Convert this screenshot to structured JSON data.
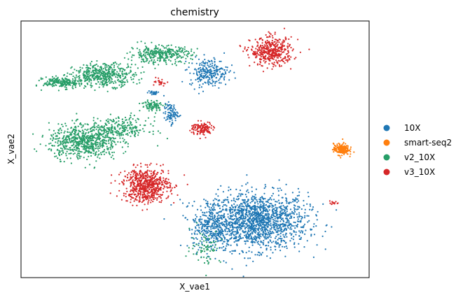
{
  "chart_data": {
    "type": "scatter",
    "title": "chemistry",
    "xlabel": "X_vae1",
    "ylabel": "X_vae2",
    "xlim": [
      0,
      100
    ],
    "ylim": [
      0,
      100
    ],
    "grid": false,
    "ticks": false,
    "legend_placement": "right-outside",
    "series": [
      {
        "name": "10X",
        "color": "#1f77b4",
        "clusters": [
          {
            "center": [
              68,
              22
            ],
            "spread": [
              13,
              10
            ],
            "count": 1500
          },
          {
            "center": [
              55,
              20
            ],
            "spread": [
              5,
              9
            ],
            "count": 320
          },
          {
            "center": [
              54,
              80
            ],
            "spread": [
              5,
              5
            ],
            "count": 240
          },
          {
            "center": [
              43,
              64
            ],
            "spread": [
              1.8,
              3.5
            ],
            "count": 90
          },
          {
            "center": [
              38,
              72
            ],
            "spread": [
              1.5,
              1
            ],
            "count": 25
          }
        ]
      },
      {
        "name": "smart-seq2",
        "color": "#ff7f0e",
        "clusters": [
          {
            "center": [
              92,
              50
            ],
            "spread": [
              2,
              2
            ],
            "count": 200
          }
        ]
      },
      {
        "name": "v2_10X",
        "color": "#279e68",
        "clusters": [
          {
            "center": [
              18,
              53
            ],
            "spread": [
              9,
              6
            ],
            "count": 650
          },
          {
            "center": [
              28,
              58
            ],
            "spread": [
              8,
              4
            ],
            "count": 250
          },
          {
            "center": [
              12,
              76
            ],
            "spread": [
              5,
              2
            ],
            "count": 220
          },
          {
            "center": [
              24,
              79
            ],
            "spread": [
              8,
              4
            ],
            "count": 450
          },
          {
            "center": [
              40,
              87
            ],
            "spread": [
              8,
              3
            ],
            "count": 330
          },
          {
            "center": [
              38,
              67
            ],
            "spread": [
              3,
              2
            ],
            "count": 90
          },
          {
            "center": [
              53,
              12
            ],
            "spread": [
              4,
              6
            ],
            "count": 70
          }
        ]
      },
      {
        "name": "v3_10X",
        "color": "#d62728",
        "clusters": [
          {
            "center": [
              72,
              88
            ],
            "spread": [
              5.5,
              5
            ],
            "count": 420
          },
          {
            "center": [
              36,
              36
            ],
            "spread": [
              6,
              6
            ],
            "count": 650
          },
          {
            "center": [
              52,
              58
            ],
            "spread": [
              3,
              2.5
            ],
            "count": 120
          },
          {
            "center": [
              40,
              76
            ],
            "spread": [
              1.5,
              1.2
            ],
            "count": 25
          },
          {
            "center": [
              90,
              29
            ],
            "spread": [
              1,
              0.5
            ],
            "count": 15
          }
        ]
      }
    ]
  }
}
